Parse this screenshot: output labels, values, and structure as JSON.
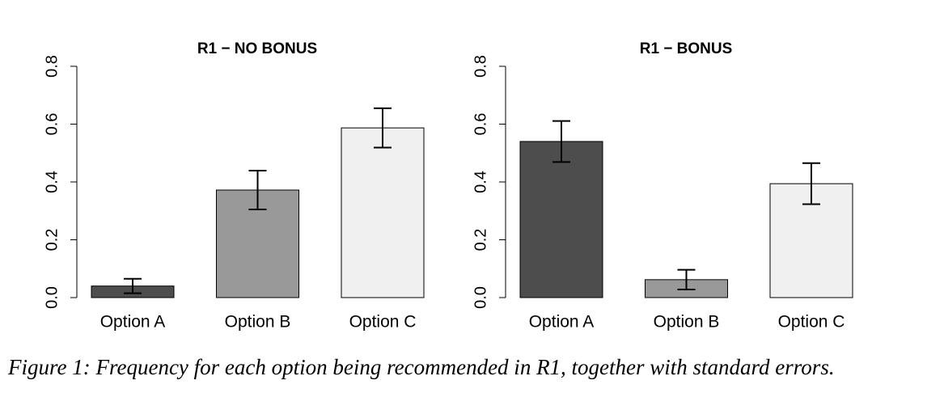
{
  "chart_data": [
    {
      "type": "bar",
      "title": "R1 − NO BONUS",
      "categories": [
        "Option A",
        "Option B",
        "Option C"
      ],
      "values": [
        0.04,
        0.372,
        0.587
      ],
      "errors": [
        0.025,
        0.067,
        0.068
      ],
      "colors": [
        "#4d4d4d",
        "#999999",
        "#f0f0f0"
      ],
      "ylim": [
        0,
        0.8
      ],
      "yticks": [
        {
          "value": 0,
          "label": "0.0"
        },
        0.2,
        0.4,
        0.6,
        0.8
      ]
    },
    {
      "type": "bar",
      "title": "R1 − BONUS",
      "categories": [
        "Option A",
        "Option B",
        "Option C"
      ],
      "values": [
        0.54,
        0.062,
        0.394
      ],
      "errors": [
        0.071,
        0.034,
        0.071
      ],
      "colors": [
        "#4d4d4d",
        "#999999",
        "#f0f0f0"
      ],
      "ylim": [
        0,
        0.8
      ],
      "yticks": [
        {
          "value": 0,
          "label": "0.0"
        },
        0.2,
        0.4,
        0.6,
        0.8
      ]
    }
  ],
  "caption": "Figure 1: Frequency for each option being recommended in R1, together with standard errors."
}
